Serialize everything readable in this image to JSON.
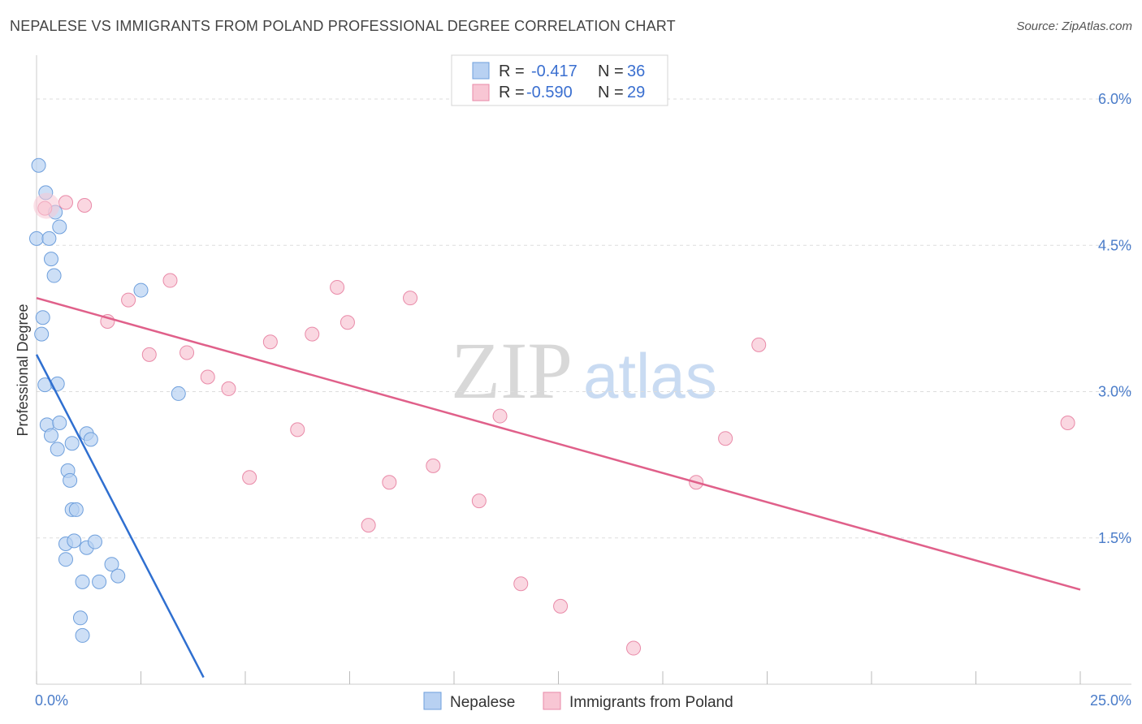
{
  "header": {
    "title": "NEPALESE VS IMMIGRANTS FROM POLAND PROFESSIONAL DEGREE CORRELATION CHART",
    "source": "Source: ZipAtlas.com"
  },
  "watermark": {
    "zip": "ZIP",
    "atlas": "atlas"
  },
  "colors": {
    "blue_fill": "#b8d1f2",
    "blue_stroke": "#6e9fdc",
    "blue_line": "#2f6fd0",
    "pink_fill": "#f8c6d4",
    "pink_stroke": "#e98aa8",
    "pink_line": "#e0608a",
    "grid": "#dddddd",
    "tick_text": "#4a7cc9"
  },
  "chart_data": {
    "type": "scatter",
    "title": "NEPALESE VS IMMIGRANTS FROM POLAND PROFESSIONAL DEGREE CORRELATION CHART",
    "xlabel": "",
    "ylabel": "Professional Degree",
    "xlim": [
      0,
      25
    ],
    "ylim": [
      0,
      6.35
    ],
    "x_tick_labels": [
      "0.0%",
      "25.0%"
    ],
    "y_ticks": [
      1.5,
      3.0,
      4.5,
      6.0
    ],
    "y_tick_labels": [
      "1.5%",
      "3.0%",
      "4.5%",
      "6.0%"
    ],
    "legend_top": [
      {
        "r_label": "R =",
        "r_value": "-0.417",
        "n_label": "N =",
        "n_value": "36"
      },
      {
        "r_label": "R =",
        "r_value": "-0.590",
        "n_label": "N =",
        "n_value": "29"
      }
    ],
    "series": [
      {
        "name": "Nepalese",
        "color": "blue",
        "points": [
          [
            0.05,
            5.32
          ],
          [
            0.22,
            5.04
          ],
          [
            0.45,
            4.84
          ],
          [
            0.55,
            4.69
          ],
          [
            0.0,
            4.57
          ],
          [
            0.3,
            4.57
          ],
          [
            0.35,
            4.36
          ],
          [
            0.42,
            4.19
          ],
          [
            2.5,
            4.04
          ],
          [
            0.15,
            3.76
          ],
          [
            0.12,
            3.59
          ],
          [
            0.2,
            3.07
          ],
          [
            0.5,
            3.08
          ],
          [
            1.2,
            2.57
          ],
          [
            0.25,
            2.66
          ],
          [
            0.55,
            2.68
          ],
          [
            0.35,
            2.55
          ],
          [
            0.85,
            2.47
          ],
          [
            1.3,
            2.51
          ],
          [
            0.5,
            2.41
          ],
          [
            0.75,
            2.19
          ],
          [
            0.8,
            2.09
          ],
          [
            0.85,
            1.79
          ],
          [
            0.95,
            1.79
          ],
          [
            0.7,
            1.44
          ],
          [
            0.9,
            1.47
          ],
          [
            1.2,
            1.4
          ],
          [
            1.4,
            1.46
          ],
          [
            0.7,
            1.28
          ],
          [
            1.8,
            1.23
          ],
          [
            1.1,
            1.05
          ],
          [
            1.5,
            1.05
          ],
          [
            1.95,
            1.11
          ],
          [
            1.05,
            0.68
          ],
          [
            1.1,
            0.5
          ],
          [
            3.4,
            2.98
          ]
        ],
        "trend": {
          "x": [
            0.0,
            4.0
          ],
          "y": [
            3.38,
            0.07
          ]
        }
      },
      {
        "name": "Immigrants from Poland",
        "color": "pink",
        "points": [
          [
            0.2,
            4.88
          ],
          [
            0.7,
            4.94
          ],
          [
            1.15,
            4.91
          ],
          [
            3.2,
            4.14
          ],
          [
            2.2,
            3.94
          ],
          [
            7.2,
            4.07
          ],
          [
            8.95,
            3.96
          ],
          [
            1.7,
            3.72
          ],
          [
            5.6,
            3.51
          ],
          [
            6.6,
            3.59
          ],
          [
            7.45,
            3.71
          ],
          [
            2.7,
            3.38
          ],
          [
            3.6,
            3.4
          ],
          [
            4.1,
            3.15
          ],
          [
            4.6,
            3.03
          ],
          [
            17.3,
            3.48
          ],
          [
            11.1,
            2.75
          ],
          [
            6.25,
            2.61
          ],
          [
            24.7,
            2.68
          ],
          [
            16.5,
            2.52
          ],
          [
            9.5,
            2.24
          ],
          [
            5.1,
            2.12
          ],
          [
            8.45,
            2.07
          ],
          [
            15.8,
            2.07
          ],
          [
            10.6,
            1.88
          ],
          [
            7.95,
            1.63
          ],
          [
            11.6,
            1.03
          ],
          [
            12.55,
            0.8
          ],
          [
            14.3,
            0.37
          ]
        ],
        "trend": {
          "x": [
            0.0,
            25.0
          ],
          "y": [
            3.96,
            0.97
          ]
        }
      }
    ],
    "legend_bottom": [
      "Nepalese",
      "Immigrants from Poland"
    ]
  }
}
